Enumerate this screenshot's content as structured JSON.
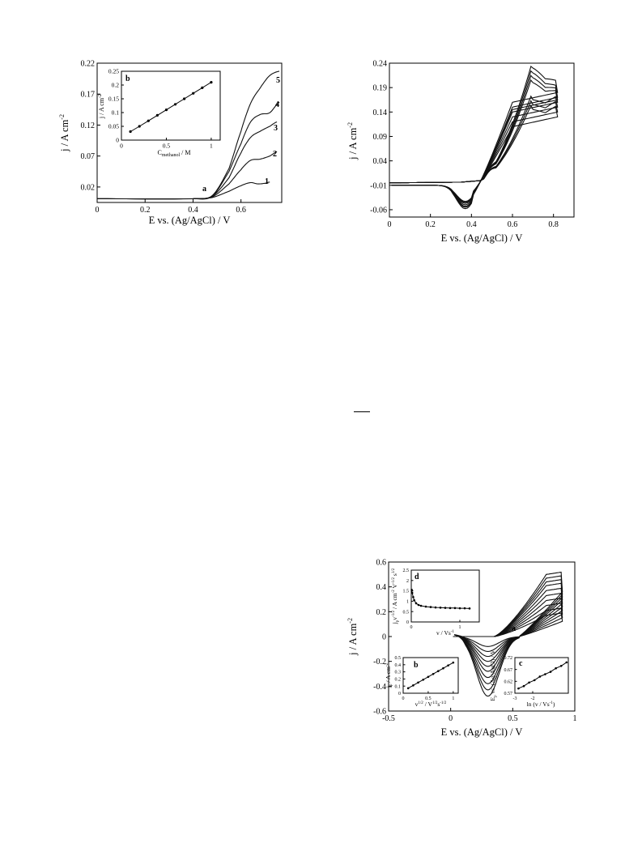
{
  "chart_data": [
    {
      "id": "figA",
      "type": "line",
      "xlabel": "E vs. (Ag/AgCl) / V",
      "ylabel": "j / A cm-2",
      "xlim": [
        0,
        0.77
      ],
      "ylim": [
        -0.005,
        0.22
      ],
      "xticks": [
        "0",
        "0.2",
        "0.4",
        "0.6"
      ],
      "yticks": [
        "0.02",
        "0.07",
        "0.12",
        "0.17",
        "0.22"
      ],
      "grid": false,
      "annotations": [
        "1",
        "2",
        "3",
        "4",
        "5",
        "a"
      ],
      "series": [
        {
          "label": "1",
          "x": [
            0,
            0.4,
            0.48,
            0.55,
            0.6,
            0.64,
            0.67,
            0.7,
            0.72
          ],
          "y": [
            0.001,
            0.001,
            0.003,
            0.013,
            0.022,
            0.027,
            0.025,
            0.026,
            0.028
          ]
        },
        {
          "label": "2",
          "x": [
            0,
            0.4,
            0.48,
            0.55,
            0.6,
            0.64,
            0.68,
            0.72,
            0.75
          ],
          "y": [
            0.001,
            0.001,
            0.004,
            0.025,
            0.048,
            0.063,
            0.065,
            0.07,
            0.077
          ]
        },
        {
          "label": "3",
          "x": [
            0,
            0.4,
            0.48,
            0.55,
            0.6,
            0.64,
            0.68,
            0.72,
            0.75
          ],
          "y": [
            0.001,
            0.001,
            0.005,
            0.035,
            0.075,
            0.1,
            0.11,
            0.118,
            0.125
          ]
        },
        {
          "label": "4",
          "x": [
            0,
            0.4,
            0.48,
            0.55,
            0.6,
            0.64,
            0.68,
            0.72,
            0.76
          ],
          "y": [
            0.001,
            0.001,
            0.005,
            0.045,
            0.09,
            0.125,
            0.137,
            0.14,
            0.157
          ]
        },
        {
          "label": "5",
          "x": [
            0,
            0.4,
            0.48,
            0.55,
            0.6,
            0.64,
            0.68,
            0.72,
            0.76
          ],
          "y": [
            0.001,
            0.001,
            0.006,
            0.05,
            0.11,
            0.155,
            0.18,
            0.2,
            0.207
          ]
        }
      ],
      "inset": {
        "label": "b",
        "xlabel": "C_methanol / M",
        "ylabel": "j / A cm-2",
        "xlim": [
          0,
          1.1
        ],
        "ylim": [
          0,
          0.25
        ],
        "xticks": [
          "0",
          "0.5",
          "1"
        ],
        "yticks": [
          "0",
          "0.05",
          "0.1",
          "0.15",
          "0.2",
          "0.25"
        ],
        "x": [
          0.1,
          0.2,
          0.3,
          0.4,
          0.5,
          0.6,
          0.7,
          0.8,
          0.9,
          1.0
        ],
        "y": [
          0.031,
          0.05,
          0.07,
          0.09,
          0.11,
          0.13,
          0.15,
          0.17,
          0.19,
          0.21
        ]
      }
    },
    {
      "id": "figB",
      "type": "line",
      "xlabel": "E vs. (Ag/AgCl) / V",
      "ylabel": "j / A cm-2",
      "xlim": [
        0,
        0.9
      ],
      "ylim": [
        -0.075,
        0.24
      ],
      "xticks": [
        "0",
        "0.2",
        "0.4",
        "0.6",
        "0.8"
      ],
      "yticks": [
        "-0.06",
        "-0.01",
        "0.04",
        "0.09",
        "0.14",
        "0.19",
        "0.24"
      ],
      "grid": false,
      "cycles": [
        {
          "anodic_peak": 0.23,
          "cathodic_peak": -0.058,
          "end": 0.18
        },
        {
          "anodic_peak": 0.22,
          "cathodic_peak": -0.055,
          "end": 0.17
        },
        {
          "anodic_peak": 0.21,
          "cathodic_peak": -0.053,
          "end": 0.165
        },
        {
          "anodic_peak": 0.2,
          "cathodic_peak": -0.05,
          "end": 0.16
        },
        {
          "anodic_peak": 0.165,
          "cathodic_peak": -0.047,
          "end": 0.15
        },
        {
          "anodic_peak": 0.155,
          "cathodic_peak": -0.045,
          "end": 0.14
        },
        {
          "anodic_peak": 0.145,
          "cathodic_peak": -0.043,
          "end": 0.13
        }
      ]
    },
    {
      "id": "figC",
      "type": "line",
      "xlabel": "E vs. (Ag/AgCl) / V",
      "ylabel": "j / A cm-2",
      "xlim": [
        -0.5,
        1.0
      ],
      "ylim": [
        -0.6,
        0.6
      ],
      "xticks": [
        "-0.5",
        "0",
        "0.5",
        "1"
      ],
      "yticks": [
        "-0.6",
        "-0.4",
        "-0.2",
        "0",
        "0.2",
        "0.4",
        "0.6"
      ],
      "grid": false,
      "annotations": [
        "a"
      ],
      "cycles": [
        {
          "anodic_peak": 0.5,
          "cathodic_peak": -0.48
        },
        {
          "anodic_peak": 0.47,
          "cathodic_peak": -0.43
        },
        {
          "anodic_peak": 0.44,
          "cathodic_peak": -0.38
        },
        {
          "anodic_peak": 0.41,
          "cathodic_peak": -0.33
        },
        {
          "anodic_peak": 0.37,
          "cathodic_peak": -0.28
        },
        {
          "anodic_peak": 0.33,
          "cathodic_peak": -0.24
        },
        {
          "anodic_peak": 0.29,
          "cathodic_peak": -0.2
        },
        {
          "anodic_peak": 0.25,
          "cathodic_peak": -0.16
        },
        {
          "anodic_peak": 0.21,
          "cathodic_peak": -0.12
        },
        {
          "anodic_peak": 0.17,
          "cathodic_peak": -0.08
        }
      ],
      "insets": [
        {
          "label": "d",
          "xlabel": "v / Vs-1",
          "ylabel": "j_p v-1/2 / A cm-2 V-1/2 s1/2",
          "xlim": [
            0,
            1.4
          ],
          "ylim": [
            0,
            2.5
          ],
          "xticks": [
            "0",
            "1"
          ],
          "yticks": [
            "0",
            "0.5",
            "1",
            "1.5",
            "2",
            "2.5"
          ],
          "x": [
            0.01,
            0.02,
            0.04,
            0.06,
            0.1,
            0.15,
            0.2,
            0.3,
            0.4,
            0.5,
            0.6,
            0.7,
            0.8,
            0.9,
            1.0,
            1.1,
            1.2
          ],
          "y": [
            1.55,
            1.4,
            1.2,
            1.05,
            0.9,
            0.82,
            0.78,
            0.74,
            0.72,
            0.7,
            0.69,
            0.68,
            0.67,
            0.67,
            0.66,
            0.66,
            0.65
          ]
        },
        {
          "label": "b",
          "xlabel": "v1/2 / V1/2s-1/2",
          "ylabel": "jp / A cm-2",
          "xlim": [
            0,
            1.1
          ],
          "ylim": [
            0,
            0.5
          ],
          "xticks": [
            "0",
            "0.5",
            "1"
          ],
          "yticks": [
            "0",
            "0.1",
            "0.2",
            "0.3",
            "0.4",
            "0.5"
          ],
          "x": [
            0.1,
            0.2,
            0.3,
            0.4,
            0.5,
            0.6,
            0.7,
            0.8,
            0.9,
            1.0
          ],
          "y": [
            0.07,
            0.11,
            0.15,
            0.19,
            0.23,
            0.27,
            0.31,
            0.35,
            0.39,
            0.43
          ]
        },
        {
          "label": "c",
          "xlabel": "ln (v / Vs-1)",
          "ylabel": "Ep vs. (Ag/AgCl) / V",
          "xlim": [
            -3,
            0
          ],
          "ylim": [
            0.57,
            0.72
          ],
          "xticks": [
            "-3",
            "-2"
          ],
          "yticks": [
            "0.57",
            "0.62",
            "0.67",
            "0.72"
          ],
          "x": [
            -2.8,
            -2.5,
            -2.2,
            -1.9,
            -1.6,
            -1.3,
            -1.0,
            -0.7,
            -0.4,
            -0.1
          ],
          "y": [
            0.59,
            0.6,
            0.615,
            0.625,
            0.64,
            0.65,
            0.66,
            0.675,
            0.685,
            0.7
          ]
        }
      ]
    }
  ]
}
